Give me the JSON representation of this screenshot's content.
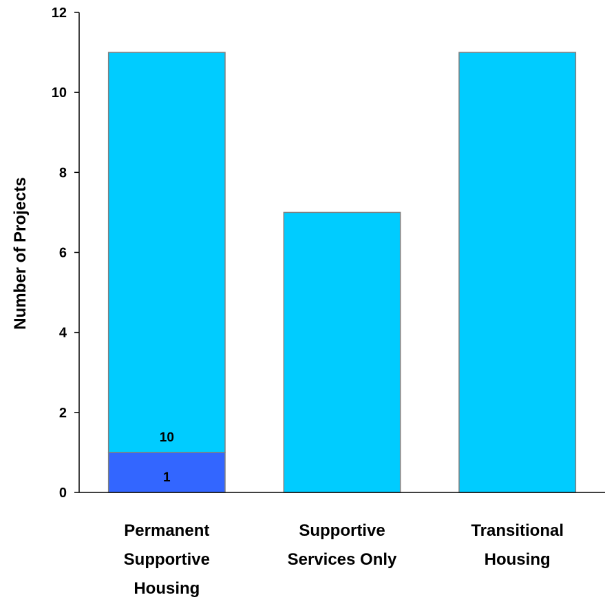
{
  "chart_data": {
    "type": "bar",
    "stacked": true,
    "categories": [
      [
        "Permanent",
        "Supportive",
        "Housing"
      ],
      [
        "Supportive",
        "Services Only"
      ],
      [
        "Transitional",
        "Housing"
      ]
    ],
    "series": [
      {
        "values": [
          1,
          0,
          0
        ],
        "color": "#3366ff"
      },
      {
        "values": [
          10,
          7,
          11
        ],
        "color": "#00ccff"
      }
    ],
    "data_labels": [
      [
        "1",
        "7",
        "11"
      ],
      [
        "10",
        "",
        ""
      ]
    ],
    "title": "",
    "xlabel": "",
    "ylabel": "Number of Projects",
    "ylim": [
      0,
      12
    ],
    "yticks": [
      0,
      2,
      4,
      6,
      8,
      10,
      12
    ],
    "grid": false,
    "legend": "none"
  }
}
